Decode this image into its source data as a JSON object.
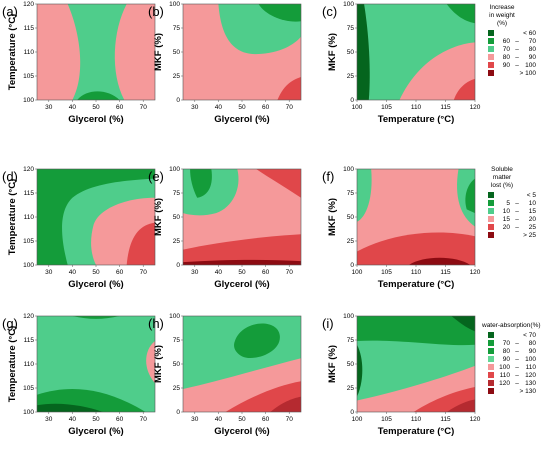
{
  "palette": {
    "c1": "#05651e",
    "c2": "#149c3a",
    "c3": "#4fcd8b",
    "c4": "#f5999a",
    "c5": "#e0474a",
    "c6": "#8c0b12",
    "c7": "#62d895",
    "c8": "#b52a30"
  },
  "chart_data": [
    {
      "type": "contour",
      "id": "a",
      "panel_label": "(a)",
      "xlabel": "Glycerol (%)",
      "ylabel": "Temperature (°C)",
      "xticks": [
        "30",
        "40",
        "50",
        "60",
        "70"
      ],
      "yticks": [
        "100",
        "105",
        "110",
        "115",
        "120"
      ],
      "xlim": [
        25,
        75
      ],
      "ylim": [
        100,
        120
      ],
      "background_level": "80-90",
      "regions": [
        {
          "level": "70-80",
          "description": "central green band connecting bottom and top"
        },
        {
          "level": "60-70",
          "description": "small dark green area at bottom center"
        }
      ]
    },
    {
      "type": "contour",
      "id": "b",
      "panel_label": "(b)",
      "xlabel": "Glycerol (%)",
      "ylabel": "MKF (%)",
      "xticks": [
        "30",
        "40",
        "50",
        "60",
        "70"
      ],
      "yticks": [
        "0",
        "25",
        "50",
        "75",
        "100"
      ],
      "xlim": [
        25,
        75
      ],
      "ylim": [
        0,
        100
      ],
      "background_level": "80-90",
      "regions": [
        {
          "level": "70-80",
          "description": "upper right region"
        },
        {
          "level": "60-70",
          "description": "top right corner"
        },
        {
          "level": "90-100",
          "description": "bottom right corner"
        }
      ]
    },
    {
      "type": "contour",
      "id": "c",
      "panel_label": "(c)",
      "xlabel": "Temperature (°C)",
      "ylabel": "MKF (%)",
      "xticks": [
        "100",
        "105",
        "110",
        "115",
        "120"
      ],
      "yticks": [
        "0",
        "25",
        "50",
        "75",
        "100"
      ],
      "xlim": [
        100,
        120
      ],
      "ylim": [
        0,
        100
      ],
      "background_level": "70-80",
      "regions": [
        {
          "level": "60-70",
          "description": "left edge strip and top right corner"
        },
        {
          "level": "80-90",
          "description": "lower right region"
        },
        {
          "level": "90-100",
          "description": "bottom right corner"
        }
      ]
    },
    {
      "type": "contour",
      "id": "d",
      "panel_label": "(d)",
      "xlabel": "Glycerol (%)",
      "ylabel": "Temperature (°C)",
      "xticks": [
        "30",
        "40",
        "50",
        "60",
        "70"
      ],
      "yticks": [
        "100",
        "105",
        "110",
        "115",
        "120"
      ],
      "xlim": [
        25,
        75
      ],
      "ylim": [
        100,
        120
      ],
      "background_level": "10-15",
      "regions": [
        {
          "level": "5-10",
          "description": "left and top edge band"
        },
        {
          "level": "15-20",
          "description": "right region"
        },
        {
          "level": "20-25",
          "description": "bottom right"
        }
      ]
    },
    {
      "type": "contour",
      "id": "e",
      "panel_label": "(e)",
      "xlabel": "Glycerol (%)",
      "ylabel": "MKF (%)",
      "xticks": [
        "30",
        "40",
        "50",
        "60",
        "70"
      ],
      "yticks": [
        "0",
        "25",
        "50",
        "75",
        "100"
      ],
      "xlim": [
        25,
        75
      ],
      "ylim": [
        0,
        100
      ],
      "background_level": "15-20",
      "regions": [
        {
          "level": "10-15",
          "description": "upper left region"
        },
        {
          "level": "5-10",
          "description": "top left corner"
        },
        {
          "level": "20-25",
          "description": "bottom band and top right corner"
        },
        {
          "level": ">25",
          "description": "bottom strip"
        }
      ]
    },
    {
      "type": "contour",
      "id": "f",
      "panel_label": "(f)",
      "xlabel": "Temperature (°C)",
      "ylabel": "MKF (%)",
      "xticks": [
        "100",
        "105",
        "110",
        "115",
        "120"
      ],
      "yticks": [
        "0",
        "25",
        "50",
        "75",
        "100"
      ],
      "xlim": [
        100,
        120
      ],
      "ylim": [
        0,
        100
      ],
      "background_level": "15-20",
      "regions": [
        {
          "level": "10-15",
          "description": "left and right edge areas"
        },
        {
          "level": "5-10",
          "description": "right edge center"
        },
        {
          "level": "20-25",
          "description": "bottom band"
        },
        {
          "level": ">25",
          "description": "bottom center"
        }
      ]
    },
    {
      "type": "contour",
      "id": "g",
      "panel_label": "(g)",
      "xlabel": "Glycerol (%)",
      "ylabel": "Temperature (°C)",
      "xticks": [
        "30",
        "40",
        "50",
        "60",
        "70"
      ],
      "yticks": [
        "100",
        "105",
        "110",
        "115",
        "120"
      ],
      "xlim": [
        25,
        75
      ],
      "ylim": [
        100,
        120
      ],
      "background_level": "90-100",
      "regions": [
        {
          "level": "80-90",
          "description": "bottom band and top edge"
        },
        {
          "level": "70-80",
          "description": "bottom left corner"
        },
        {
          "level": "100-110",
          "description": "right edge"
        }
      ]
    },
    {
      "type": "contour",
      "id": "h",
      "panel_label": "(h)",
      "xlabel": "Glycerol (%)",
      "ylabel": "MKF (%)",
      "xticks": [
        "30",
        "40",
        "50",
        "60",
        "70"
      ],
      "yticks": [
        "0",
        "25",
        "50",
        "75",
        "100"
      ],
      "xlim": [
        25,
        75
      ],
      "ylim": [
        0,
        100
      ],
      "background_level": "90-100",
      "regions": [
        {
          "level": "80-90",
          "description": "upper center ellipse"
        },
        {
          "level": "100-110",
          "description": "lower band"
        },
        {
          "level": "110-120",
          "description": "lower right"
        },
        {
          "level": "120-130",
          "description": "bottom right corner"
        }
      ]
    },
    {
      "type": "contour",
      "id": "i",
      "panel_label": "(i)",
      "xlabel": "Temperature (°C)",
      "ylabel": "MKF (%)",
      "xticks": [
        "100",
        "105",
        "110",
        "115",
        "120"
      ],
      "yticks": [
        "0",
        "25",
        "50",
        "75",
        "100"
      ],
      "xlim": [
        100,
        120
      ],
      "ylim": [
        0,
        100
      ],
      "background_level": "90-100",
      "regions": [
        {
          "level": "80-90",
          "description": "upper region"
        },
        {
          "level": "70-80",
          "description": "top right corner and left edge"
        },
        {
          "level": "100-110",
          "description": "lower band"
        },
        {
          "level": "110-120",
          "description": "bottom right"
        },
        {
          "level": "120-130",
          "description": "bottom right corner"
        }
      ]
    }
  ],
  "legends": [
    {
      "id": "weight",
      "title_lines": [
        "Increase",
        "in weight",
        "(%)"
      ],
      "entries": [
        {
          "label_left": "",
          "label_right": "< 60",
          "color": "c1"
        },
        {
          "label_left": "60",
          "label_right": "70",
          "color": "c2"
        },
        {
          "label_left": "70",
          "label_right": "80",
          "color": "c3"
        },
        {
          "label_left": "80",
          "label_right": "90",
          "color": "c4"
        },
        {
          "label_left": "90",
          "label_right": "100",
          "color": "c5"
        },
        {
          "label_left": "",
          "label_right": "> 100",
          "color": "c6"
        }
      ]
    },
    {
      "id": "soluble",
      "title_lines": [
        "Soluble",
        "matter",
        "lost (%)"
      ],
      "entries": [
        {
          "label_left": "",
          "label_right": "< 5",
          "color": "c1"
        },
        {
          "label_left": "5",
          "label_right": "10",
          "color": "c2"
        },
        {
          "label_left": "10",
          "label_right": "15",
          "color": "c3"
        },
        {
          "label_left": "15",
          "label_right": "20",
          "color": "c4"
        },
        {
          "label_left": "20",
          "label_right": "25",
          "color": "c5"
        },
        {
          "label_left": "",
          "label_right": "> 25",
          "color": "c6"
        }
      ]
    },
    {
      "id": "water",
      "title_lines": [
        "water-absorption(%)"
      ],
      "entries": [
        {
          "label_left": "",
          "label_right": "< 70",
          "color": "c1"
        },
        {
          "label_left": "70",
          "label_right": "80",
          "color": "c2"
        },
        {
          "label_left": "80",
          "label_right": "90",
          "color": "c2"
        },
        {
          "label_left": "90",
          "label_right": "100",
          "color": "c7"
        },
        {
          "label_left": "100",
          "label_right": "110",
          "color": "c4"
        },
        {
          "label_left": "110",
          "label_right": "120",
          "color": "c5"
        },
        {
          "label_left": "120",
          "label_right": "130",
          "color": "c8"
        },
        {
          "label_left": "",
          "label_right": "> 130",
          "color": "c6"
        }
      ]
    }
  ]
}
